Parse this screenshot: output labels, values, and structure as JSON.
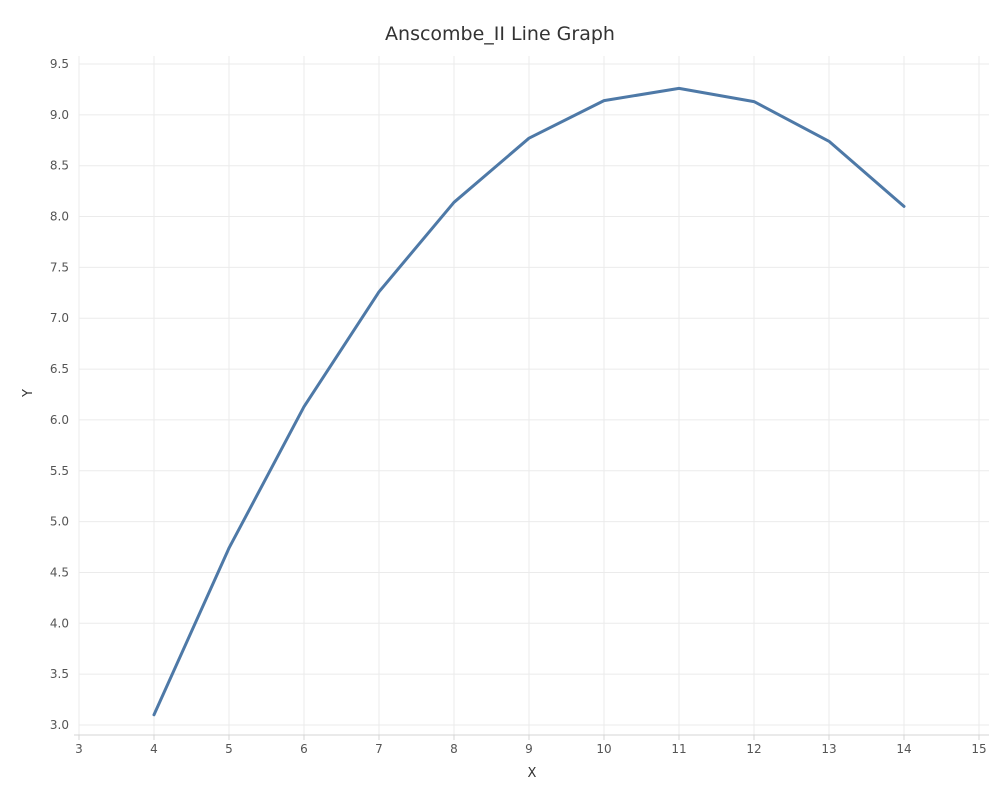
{
  "chart_data": {
    "type": "line",
    "title": "Anscombe_II Line Graph",
    "xlabel": "X",
    "ylabel": "Y",
    "xlim": [
      3,
      15
    ],
    "ylim": [
      3.0,
      9.5
    ],
    "xticks": [
      "3",
      "4",
      "5",
      "6",
      "7",
      "8",
      "9",
      "10",
      "11",
      "12",
      "13",
      "14",
      "15"
    ],
    "yticks": [
      "3.0",
      "3.5",
      "4.0",
      "4.5",
      "5.0",
      "5.5",
      "6.0",
      "6.5",
      "7.0",
      "7.5",
      "8.0",
      "8.5",
      "9.0",
      "9.5"
    ],
    "grid": true,
    "series": [
      {
        "color": "#4e79a7",
        "x": [
          4,
          5,
          6,
          7,
          8,
          9,
          10,
          11,
          12,
          13,
          14
        ],
        "y": [
          3.1,
          4.74,
          6.13,
          7.26,
          8.14,
          8.77,
          9.14,
          9.26,
          9.13,
          8.74,
          8.1
        ]
      }
    ]
  }
}
